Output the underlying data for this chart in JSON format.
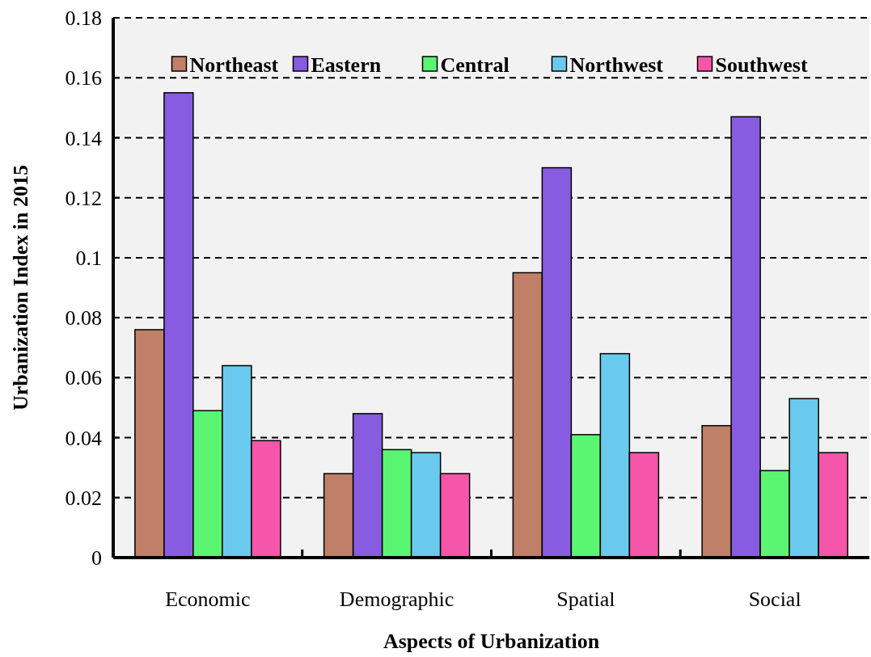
{
  "chart_data": {
    "type": "bar",
    "xlabel": "Aspects of Urbanization",
    "ylabel": "Urbanization Index in 2015",
    "categories": [
      "Economic",
      "Demographic",
      "Spatial",
      "Social"
    ],
    "series": [
      {
        "name": "Northeast",
        "color": "#c07f67",
        "values": [
          0.076,
          0.028,
          0.095,
          0.044
        ]
      },
      {
        "name": "Eastern",
        "color": "#875ce0",
        "values": [
          0.155,
          0.048,
          0.13,
          0.147
        ]
      },
      {
        "name": "Central",
        "color": "#5af672",
        "values": [
          0.049,
          0.036,
          0.041,
          0.029
        ]
      },
      {
        "name": "Northwest",
        "color": "#69caee",
        "values": [
          0.064,
          0.035,
          0.068,
          0.053
        ]
      },
      {
        "name": "Southwest",
        "color": "#f556a9",
        "values": [
          0.039,
          0.028,
          0.035,
          0.035
        ]
      }
    ],
    "ylim": [
      0,
      0.18
    ],
    "yticks": [
      0,
      0.02,
      0.04,
      0.06,
      0.08,
      0.1,
      0.12,
      0.14,
      0.16,
      0.18
    ],
    "grid": "y",
    "legend": "top"
  }
}
